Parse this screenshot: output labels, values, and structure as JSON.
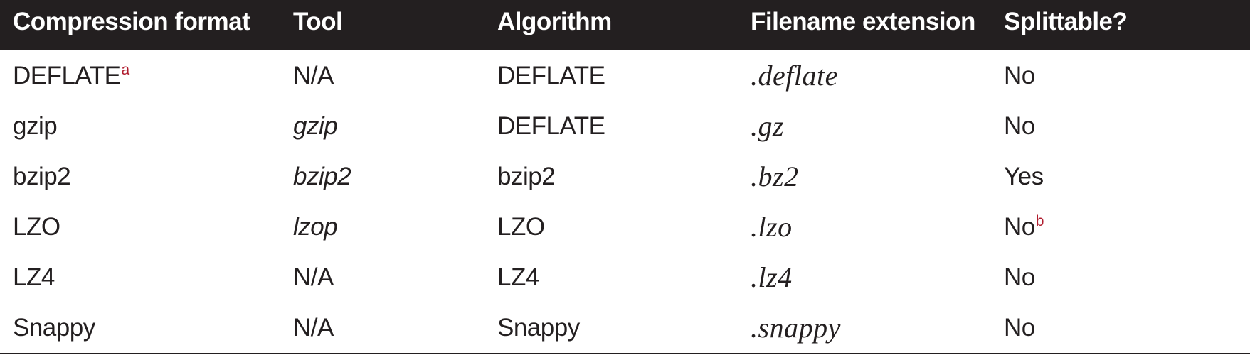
{
  "table": {
    "headers": [
      "Compression format",
      "Tool",
      "Algorithm",
      "Filename extension",
      "Splittable?"
    ],
    "rows": [
      {
        "format": "DEFLATE",
        "format_note": "a",
        "tool": "N/A",
        "algorithm": "DEFLATE",
        "extension": ".deflate",
        "splittable": "No",
        "splittable_note": ""
      },
      {
        "format": "gzip",
        "format_note": "",
        "tool": "gzip",
        "algorithm": "DEFLATE",
        "extension": ".gz",
        "splittable": "No",
        "splittable_note": ""
      },
      {
        "format": "bzip2",
        "format_note": "",
        "tool": "bzip2",
        "algorithm": "bzip2",
        "extension": ".bz2",
        "splittable": "Yes",
        "splittable_note": ""
      },
      {
        "format": "LZO",
        "format_note": "",
        "tool": "lzop",
        "algorithm": "LZO",
        "extension": ".lzo",
        "splittable": "No",
        "splittable_note": "b"
      },
      {
        "format": "LZ4",
        "format_note": "",
        "tool": "N/A",
        "algorithm": "LZ4",
        "extension": ".lz4",
        "splittable": "No",
        "splittable_note": ""
      },
      {
        "format": "Snappy",
        "format_note": "",
        "tool": "N/A",
        "algorithm": "Snappy",
        "extension": ".snappy",
        "splittable": "No",
        "splittable_note": ""
      }
    ]
  },
  "colors": {
    "header_background": "#231f20",
    "header_text": "#ffffff",
    "body_text": "#231f20",
    "footnote_marker": "#b01c2e"
  }
}
